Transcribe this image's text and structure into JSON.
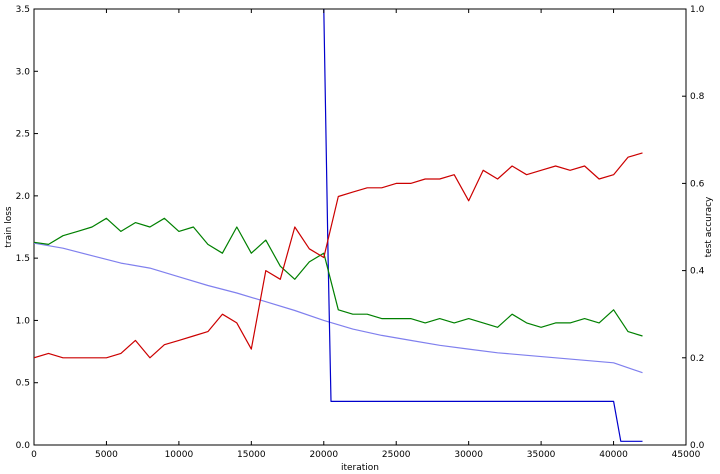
{
  "chart_data": {
    "type": "line",
    "xlabel": "iteration",
    "ylabel_left": "train loss",
    "ylabel_right": "test accuracy",
    "xlim": [
      0,
      45000
    ],
    "ylim_left": [
      0,
      3.5
    ],
    "ylim_right": [
      0,
      1.0
    ],
    "x_ticks": [
      "0",
      "5000",
      "10000",
      "15000",
      "20000",
      "25000",
      "30000",
      "35000",
      "40000",
      "45000"
    ],
    "y_left_ticks": [
      "0.0",
      "0.5",
      "1.0",
      "1.5",
      "2.0",
      "2.5",
      "3.0",
      "3.5"
    ],
    "y_right_ticks": [
      "0.0",
      "0.2",
      "0.4",
      "0.6",
      "0.8",
      "1.0"
    ],
    "grid": false,
    "series": [
      {
        "axis": "left",
        "color": "#8080ee",
        "x": [
          0,
          2000,
          4000,
          6000,
          8000,
          10000,
          12000,
          14000,
          16000,
          18000,
          20000,
          22000,
          24000,
          26000,
          28000,
          30000,
          32000,
          34000,
          36000,
          38000,
          40000,
          42000
        ],
        "values": [
          1.62,
          1.58,
          1.52,
          1.46,
          1.42,
          1.35,
          1.28,
          1.22,
          1.15,
          1.08,
          1.0,
          0.93,
          0.88,
          0.84,
          0.8,
          0.77,
          0.74,
          0.72,
          0.7,
          0.68,
          0.66,
          0.58
        ]
      },
      {
        "axis": "left",
        "color": "#0000cc",
        "x": [
          20000,
          20300,
          20500,
          40000,
          40500,
          42000
        ],
        "values": [
          3.5,
          1.5,
          0.35,
          0.35,
          0.03,
          0.03
        ]
      },
      {
        "axis": "right",
        "color": "#008000",
        "x": [
          0,
          1000,
          2000,
          3000,
          4000,
          5000,
          6000,
          7000,
          8000,
          9000,
          10000,
          11000,
          12000,
          13000,
          14000,
          15000,
          16000,
          17000,
          18000,
          19000,
          20000,
          21000,
          22000,
          23000,
          24000,
          25000,
          26000,
          27000,
          28000,
          29000,
          30000,
          31000,
          32000,
          33000,
          34000,
          35000,
          36000,
          37000,
          38000,
          39000,
          40000,
          41000,
          42000
        ],
        "values": [
          0.465,
          0.46,
          0.48,
          0.49,
          0.5,
          0.52,
          0.49,
          0.51,
          0.5,
          0.52,
          0.49,
          0.5,
          0.46,
          0.44,
          0.5,
          0.44,
          0.47,
          0.41,
          0.38,
          0.42,
          0.44,
          0.31,
          0.3,
          0.3,
          0.29,
          0.29,
          0.29,
          0.28,
          0.29,
          0.28,
          0.29,
          0.28,
          0.27,
          0.3,
          0.28,
          0.27,
          0.28,
          0.28,
          0.29,
          0.28,
          0.31,
          0.26,
          0.25
        ]
      },
      {
        "axis": "right",
        "color": "#cc0000",
        "x": [
          0,
          1000,
          2000,
          3000,
          4000,
          5000,
          6000,
          7000,
          8000,
          9000,
          10000,
          11000,
          12000,
          13000,
          14000,
          15000,
          16000,
          17000,
          18000,
          19000,
          20000,
          21000,
          22000,
          23000,
          24000,
          25000,
          26000,
          27000,
          28000,
          29000,
          30000,
          31000,
          32000,
          33000,
          34000,
          35000,
          36000,
          37000,
          38000,
          39000,
          40000,
          41000,
          42000
        ],
        "values": [
          0.2,
          0.21,
          0.2,
          0.2,
          0.2,
          0.2,
          0.21,
          0.24,
          0.2,
          0.23,
          0.24,
          0.25,
          0.26,
          0.3,
          0.28,
          0.22,
          0.4,
          0.38,
          0.5,
          0.45,
          0.43,
          0.57,
          0.58,
          0.59,
          0.59,
          0.6,
          0.6,
          0.61,
          0.61,
          0.62,
          0.56,
          0.63,
          0.61,
          0.64,
          0.62,
          0.63,
          0.64,
          0.63,
          0.64,
          0.61,
          0.62,
          0.66,
          0.67
        ]
      }
    ]
  }
}
